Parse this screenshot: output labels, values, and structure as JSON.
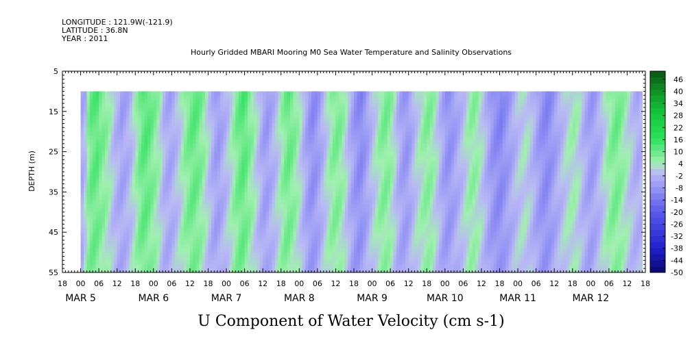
{
  "header": {
    "longitude": "LONGITUDE : 121.9W(-121.9)",
    "latitude": "LATITUDE : 36.8N",
    "year": "YEAR : 2011",
    "title": "Hourly Gridded MBARI Mooring M0 Sea Water Temperature and Salinity Observations"
  },
  "chart_data": {
    "type": "heatmap",
    "title": "Hourly Gridded MBARI Mooring M0 Sea Water Temperature and Salinity Observations",
    "xlabel": "U Component of Water Velocity (cm s-1)",
    "ylabel": "DEPTH (m)",
    "x_range_hours": [
      -6,
      186
    ],
    "y_range": [
      5,
      55
    ],
    "y_inverted": true,
    "data_depth_range": [
      10,
      55
    ],
    "data_start_hour": 0,
    "hour_tick_labels": [
      "18",
      "00",
      "06",
      "12",
      "18",
      "00",
      "06",
      "12",
      "18",
      "00",
      "06",
      "12",
      "18",
      "00",
      "06",
      "12",
      "18",
      "00",
      "06",
      "12",
      "18",
      "00",
      "06",
      "12",
      "18",
      "00",
      "06",
      "12",
      "18",
      "00",
      "06",
      "12",
      "18"
    ],
    "day_labels": [
      {
        "label": "MAR  5",
        "hour": 0
      },
      {
        "label": "MAR  6",
        "hour": 24
      },
      {
        "label": "MAR  7",
        "hour": 48
      },
      {
        "label": "MAR  8",
        "hour": 72
      },
      {
        "label": "MAR  9",
        "hour": 96
      },
      {
        "label": "MAR 10",
        "hour": 120
      },
      {
        "label": "MAR 11",
        "hour": 144
      },
      {
        "label": "MAR 12",
        "hour": 168
      }
    ],
    "y_ticks": [
      "5",
      "15",
      "25",
      "35",
      "45",
      "55"
    ],
    "y_tick_values": [
      5,
      15,
      25,
      35,
      45,
      55
    ],
    "colorbar_labels": [
      "46",
      "40",
      "34",
      "28",
      "22",
      "16",
      "10",
      "4",
      "-2",
      "-8",
      "-14",
      "-20",
      "-26",
      "-32",
      "-38",
      "-44",
      "-50"
    ],
    "colorbar_range": [
      -50,
      50
    ],
    "colorbar_levels": [
      -50,
      -47,
      -44,
      -41,
      -38,
      -35,
      -32,
      -29,
      -26,
      -23,
      -20,
      -17,
      -14,
      -11,
      -8,
      -5,
      -2,
      1,
      4,
      7,
      10,
      13,
      16,
      19,
      22,
      25,
      28,
      31,
      34,
      37,
      40,
      43,
      46,
      49
    ],
    "velocity_profile_by_hour": [
      -4,
      -3,
      6,
      10,
      11,
      12,
      9,
      8,
      6,
      4,
      1,
      -2,
      -3,
      -6,
      -5,
      -4,
      -2,
      1,
      4,
      8,
      11,
      12,
      11,
      9,
      7,
      5,
      2,
      -2,
      -4,
      -5,
      -4,
      -2,
      0,
      3,
      6,
      8,
      10,
      11,
      10,
      8,
      6,
      3,
      0,
      -3,
      -6,
      -7,
      -5,
      -3,
      -1,
      2,
      5,
      8,
      10,
      12,
      11,
      8,
      6,
      3,
      0,
      -3,
      -6,
      -7,
      -5,
      -3,
      -1,
      2,
      5,
      8,
      10,
      9,
      7,
      5,
      2,
      -2,
      -5,
      -8,
      -10,
      -9,
      -7,
      -4,
      -1,
      2,
      5,
      7,
      8,
      7,
      5,
      2,
      -2,
      -5,
      -8,
      -10,
      -11,
      -9,
      -6,
      -3,
      0,
      2,
      5,
      7,
      8,
      7,
      5,
      2,
      -2,
      -5,
      -7,
      -8,
      -6,
      -3,
      0,
      2,
      4,
      6,
      7,
      6,
      4,
      1,
      -2,
      -5,
      -8,
      -9,
      -8,
      -6,
      -4,
      -2,
      0,
      3,
      5,
      6,
      5,
      3,
      1,
      -2,
      -5,
      -8,
      -10,
      -11,
      -12,
      -10,
      -8,
      -6,
      -4,
      -2,
      0,
      1,
      2,
      1,
      -1,
      -3,
      -6,
      -8,
      -10,
      -11,
      -10,
      -8,
      -6,
      -4,
      -2,
      0,
      2,
      3,
      4,
      3,
      1,
      -2,
      -4,
      -6,
      -7,
      -6,
      -4,
      -2,
      1,
      4,
      6,
      8,
      9,
      8,
      6,
      4,
      2,
      0,
      -2,
      -4,
      -3
    ]
  },
  "colors": {
    "green_dark": "#0c4f0c",
    "green": "#18e048",
    "green_light": "#9ff0b0",
    "purple_light": "#b0b0f0",
    "blue": "#3030d0",
    "blue_dark": "#10108a"
  }
}
